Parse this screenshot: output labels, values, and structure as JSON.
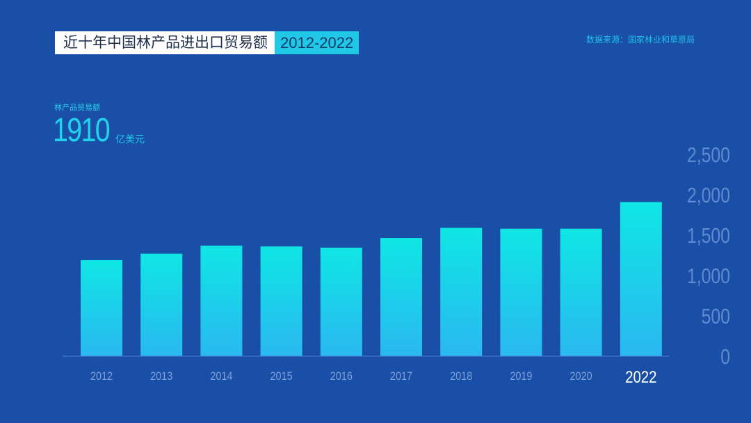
{
  "header": {
    "title": "近十年中国林产品进出口贸易额",
    "year_range": "2012-2022",
    "source": "数据来源：国家林业和草原局"
  },
  "kpi": {
    "label": "林产品贸易额",
    "value": "1910",
    "unit": "亿美元"
  },
  "colors": {
    "background": "#1a4fa8",
    "bar_top": "#0fe6e4",
    "bar_bottom": "#2ab8f0",
    "axis_label": "#5f8ad0"
  },
  "chart_data": {
    "type": "bar",
    "title": "近十年中国林产品进出口贸易额 2012-2022",
    "xlabel": "",
    "ylabel": "",
    "categories": [
      "2012",
      "2013",
      "2014",
      "2015",
      "2016",
      "2017",
      "2018",
      "2019",
      "2020",
      "2022"
    ],
    "values": [
      1190,
      1270,
      1370,
      1360,
      1345,
      1465,
      1590,
      1580,
      1580,
      1910
    ],
    "highlight_category": "2022",
    "ylim": [
      0,
      2500
    ],
    "yticks": [
      0,
      500,
      1000,
      1500,
      2000,
      2500
    ],
    "ytick_labels": [
      "0",
      "500",
      "1,000",
      "1,500",
      "2,000",
      "2,500"
    ],
    "y_axis_position": "right",
    "grid": false
  }
}
